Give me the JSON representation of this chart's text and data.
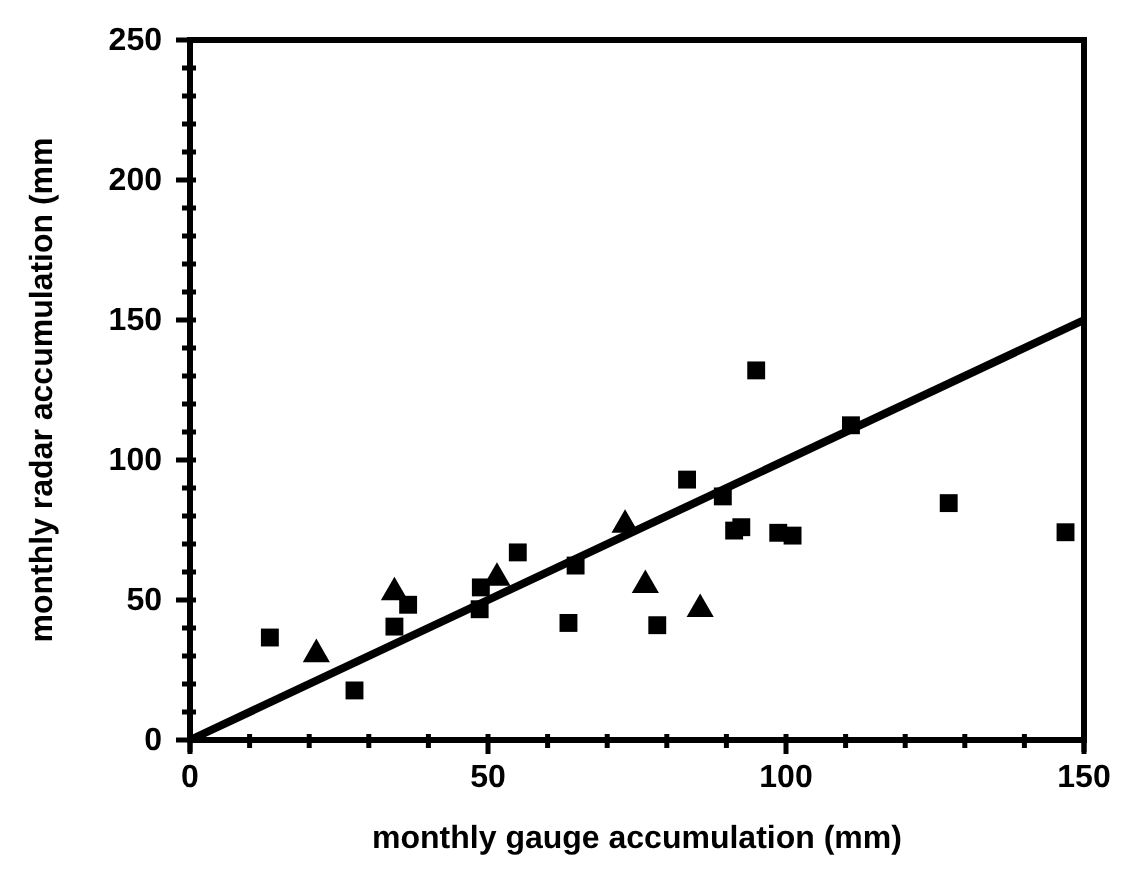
{
  "chart_data": {
    "type": "scatter",
    "xlabel": "monthly gauge accumulation (mm)",
    "ylabel": "monthly radar accumulation (mm",
    "xlim": [
      0,
      150
    ],
    "ylim": [
      0,
      250
    ],
    "xticks": [
      0,
      {
        "value": 10,
        "label": null
      },
      {
        "value": 20,
        "label": null
      },
      {
        "value": 30,
        "label": null
      },
      {
        "value": 40,
        "label": null
      },
      50,
      {
        "value": 60,
        "label": null
      },
      {
        "value": 70,
        "label": null
      },
      {
        "value": 80,
        "label": null
      },
      {
        "value": 90,
        "label": null
      },
      100,
      {
        "value": 110,
        "label": null
      },
      {
        "value": 120,
        "label": null
      },
      {
        "value": 130,
        "label": null
      },
      {
        "value": 140,
        "label": null
      },
      150
    ],
    "yticks": [
      0,
      {
        "value": 10,
        "label": null
      },
      {
        "value": 20,
        "label": null
      },
      {
        "value": 30,
        "label": null
      },
      {
        "value": 40,
        "label": null
      },
      50,
      {
        "value": 60,
        "label": null
      },
      {
        "value": 70,
        "label": null
      },
      {
        "value": 80,
        "label": null
      },
      {
        "value": 90,
        "label": null
      },
      100,
      {
        "value": 110,
        "label": null
      },
      {
        "value": 120,
        "label": null
      },
      {
        "value": 130,
        "label": null
      },
      {
        "value": 140,
        "label": null
      },
      150,
      {
        "value": 160,
        "label": null
      },
      {
        "value": 170,
        "label": null
      },
      {
        "value": 180,
        "label": null
      },
      {
        "value": 190,
        "label": null
      },
      200,
      {
        "value": 210,
        "label": null
      },
      {
        "value": 220,
        "label": null
      },
      {
        "value": 230,
        "label": null
      },
      {
        "value": 240,
        "label": null
      },
      250
    ],
    "grid": false,
    "series": [
      {
        "marker": "square",
        "color": "#000000",
        "x": [
          13.4,
          27.6,
          34.3,
          36.6,
          48.6,
          48.8,
          55,
          64.7,
          63.5,
          78.4,
          83.4,
          89.4,
          91.3,
          92.5,
          95,
          98.7,
          101.1,
          110.9,
          127.3,
          146.9
        ],
        "values": [
          36.6,
          17.7,
          40.5,
          48.3,
          46.7,
          54.5,
          67,
          62.3,
          41.8,
          41,
          93,
          87,
          74.8,
          76,
          132,
          74,
          73,
          112.4,
          84.6,
          74.2
        ]
      },
      {
        "marker": "triangle",
        "color": "#000000",
        "x": [
          21.2,
          34.3,
          51.5,
          73,
          76.4,
          85.6
        ],
        "values": [
          30.6,
          52.7,
          57.9,
          76.8,
          55.3,
          46.7
        ]
      },
      {
        "type": "line",
        "marker": "none",
        "line_style": "solid",
        "color": "#000000",
        "x": [
          0,
          150
        ],
        "values": [
          0,
          150
        ]
      }
    ]
  }
}
